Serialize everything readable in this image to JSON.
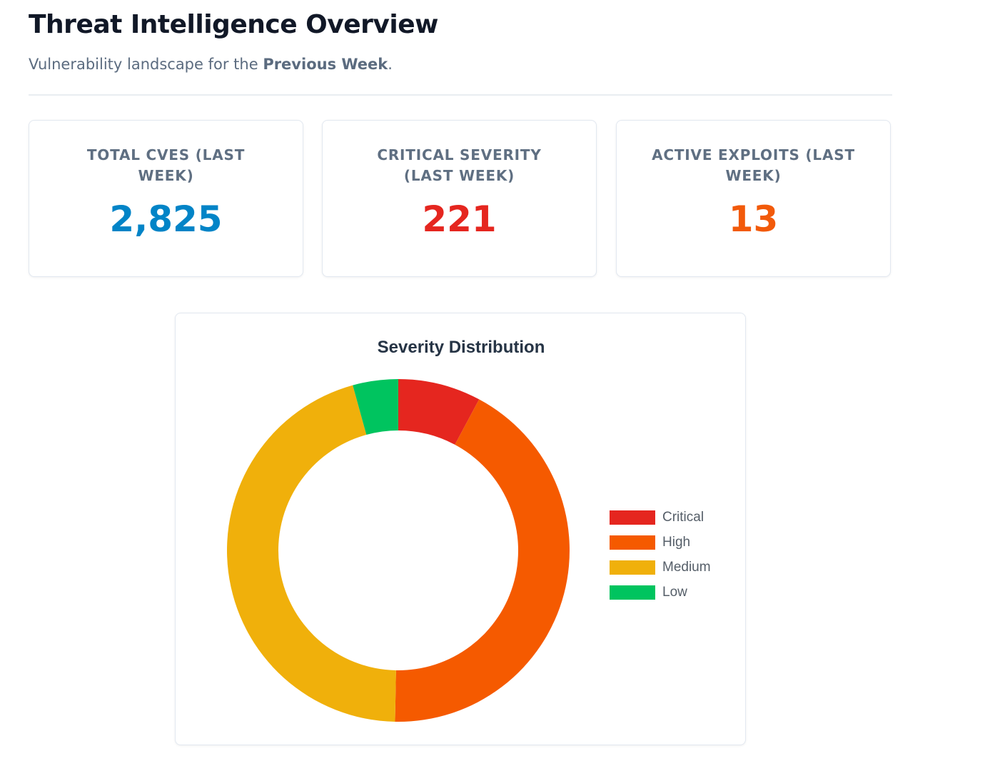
{
  "header": {
    "title": "Threat Intelligence Overview",
    "subtitle_prefix": "Vulnerability landscape for the ",
    "subtitle_period": "Previous Week",
    "subtitle_suffix": "."
  },
  "stats": [
    {
      "label": "TOTAL CVES (LAST WEEK)",
      "value": "2,825",
      "color": "#0284c7"
    },
    {
      "label": "CRITICAL SEVERITY (LAST WEEK)",
      "value": "221",
      "color": "#e5261f"
    },
    {
      "label": "ACTIVE EXPLOITS (LAST WEEK)",
      "value": "13",
      "color": "#f25a0a"
    }
  ],
  "chart_data": {
    "type": "pie",
    "title": "Severity Distribution",
    "donut": true,
    "categories": [
      "Critical",
      "High",
      "Medium",
      "Low"
    ],
    "values": [
      221,
      1200,
      1283,
      121
    ],
    "colors": [
      "#e5261f",
      "#f55a00",
      "#f0b00b",
      "#00c45f"
    ],
    "legend": "right"
  }
}
